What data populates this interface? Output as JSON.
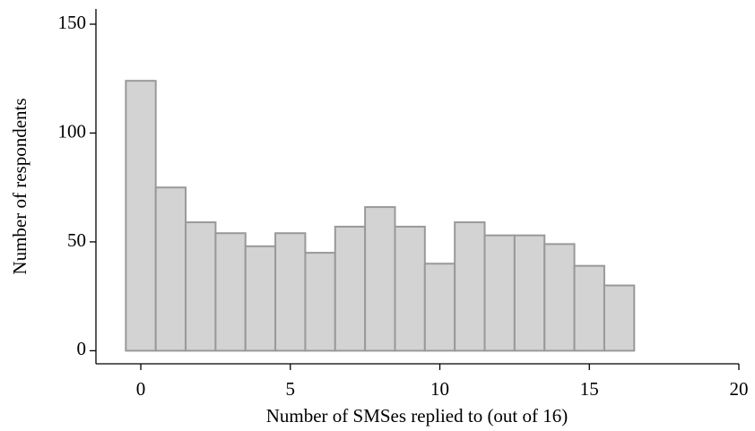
{
  "chart_data": {
    "type": "histogram",
    "xlabel": "Number of SMSes replied to (out of 16)",
    "ylabel": "Number of respondents",
    "bins": [
      -0.5,
      0.5,
      1.5,
      2.5,
      3.5,
      4.5,
      5.5,
      6.5,
      7.5,
      8.5,
      9.5,
      10.5,
      11.5,
      12.5,
      13.5,
      14.5,
      15.5,
      16.5
    ],
    "values": [
      124,
      75,
      59,
      54,
      48,
      54,
      45,
      57,
      66,
      57,
      40,
      59,
      53,
      53,
      49,
      39,
      30
    ],
    "color": "#d3d3d3",
    "edgecolor": "#999999",
    "xlim": [
      -1.5,
      20
    ],
    "ylim": [
      -6,
      157
    ],
    "xticks": [
      0,
      5,
      10,
      15,
      20
    ],
    "yticks": [
      0,
      50,
      100,
      150
    ]
  }
}
